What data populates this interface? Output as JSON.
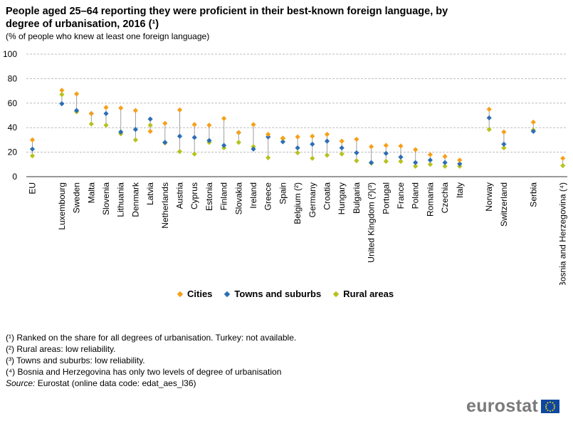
{
  "title": "People aged 25–64 reporting they were proficient in their best-known foreign language, by degree of urbanisation, 2016 (¹)",
  "subtitle": "(% of people who knew at least one foreign language)",
  "legend": [
    {
      "name": "Cities",
      "color": "#f6a01a"
    },
    {
      "name": "Towns and suburbs",
      "color": "#2c6eb5"
    },
    {
      "name": "Rural areas",
      "color": "#b5c21e"
    }
  ],
  "notes": [
    "(¹) Ranked on the share for all degrees of urbanisation. Turkey: not available.",
    "(²) Rural areas: low reliability.",
    "(³) Towns and suburbs: low reliability.",
    "(⁴) Bosnia and Herzegovina has only two levels of degree of urbanisation"
  ],
  "source": {
    "label": "Source:",
    "text": "Eurostat (online data code: edat_aes_l36)"
  },
  "logo": {
    "text": "eurostat"
  },
  "chart_data": {
    "type": "scatter",
    "ylim": [
      0,
      100
    ],
    "yticks": [
      0,
      20,
      40,
      60,
      80,
      100
    ],
    "grid": true,
    "legend_position": "bottom",
    "categories": [
      "EU",
      "Luxembourg",
      "Sweden",
      "Malta",
      "Slovenia",
      "Lithuania",
      "Denmark",
      "Latvia",
      "Netherlands",
      "Austria",
      "Cyprus",
      "Estonia",
      "Finland",
      "Slovakia",
      "Ireland",
      "Greece",
      "Spain",
      "Belgium (²)",
      "Germany",
      "Croatia",
      "Hungary",
      "Bulgaria",
      "United Kingdom (²)(³)",
      "Portugal",
      "France",
      "Poland",
      "Romania",
      "Czechia",
      "Italy",
      "Norway",
      "Switzerland",
      "Serbia",
      "Bosnia and Herzegovina (⁴)"
    ],
    "positions": [
      0,
      2,
      3,
      4,
      5,
      6,
      7,
      8,
      9,
      10,
      11,
      12,
      13,
      14,
      15,
      16,
      17,
      18,
      19,
      20,
      21,
      22,
      23,
      24,
      25,
      26,
      27,
      28,
      29,
      31,
      32,
      34,
      36
    ],
    "series": [
      {
        "name": "Cities",
        "values": [
          30,
          70.5,
          67.5,
          51.5,
          56.5,
          56,
          54,
          37,
          43.5,
          54.5,
          42.5,
          42,
          47.5,
          36,
          42.5,
          34.5,
          31.5,
          32.5,
          33,
          34.5,
          29,
          30.5,
          24.5,
          25.5,
          25,
          22,
          18,
          16.5,
          13.5,
          55,
          36.5,
          44.5,
          15
        ]
      },
      {
        "name": "Towns and suburbs",
        "values": [
          22.5,
          59.5,
          54,
          51.5,
          51.5,
          36.5,
          38.5,
          47,
          28,
          33,
          32,
          29.5,
          25.5,
          36,
          22.5,
          32.5,
          28.5,
          23.5,
          26.5,
          29,
          23.5,
          19.5,
          11.5,
          19,
          16,
          11.5,
          13.5,
          11.5,
          10.5,
          48,
          26.5,
          37,
          null
        ]
      },
      {
        "name": "Rural areas",
        "values": [
          17,
          67,
          53,
          43,
          42,
          35,
          30,
          42,
          27.5,
          20.5,
          18.5,
          28,
          23.5,
          28,
          24.5,
          15.5,
          31,
          19.5,
          15,
          17.5,
          18.5,
          13,
          11,
          12.5,
          12.5,
          8.5,
          10,
          8.5,
          8.5,
          38.5,
          23.5,
          38,
          9
        ]
      }
    ]
  }
}
